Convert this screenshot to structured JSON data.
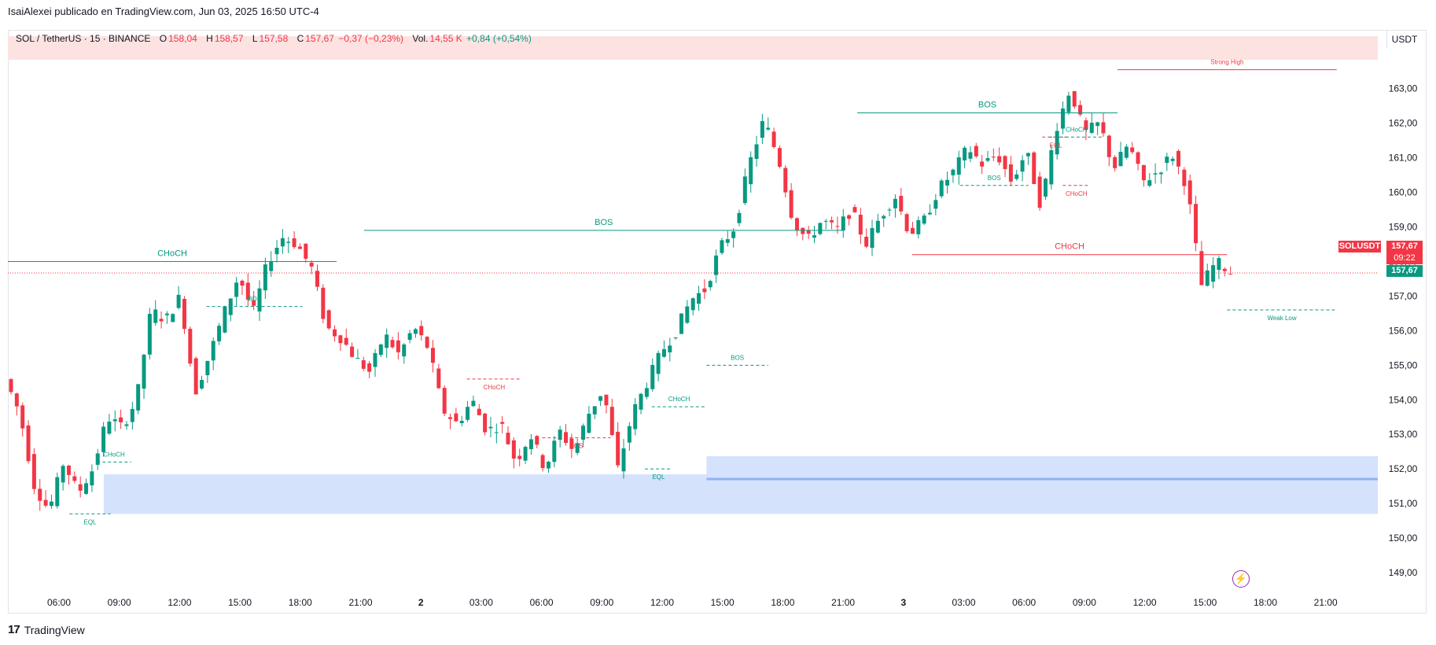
{
  "publisher": "IsaiAlexei publicado en TradingView.com, Jun 03, 2025 16:50 UTC-4",
  "legend": {
    "symbol": "SOL / TetherUS · 15 · BINANCE",
    "o_label": "O",
    "o": "158,04",
    "h_label": "H",
    "h": "158,57",
    "l_label": "L",
    "l": "157,58",
    "c_label": "C",
    "c": "157,67",
    "change": "−0,37 (−0,23%)",
    "vol_label": "Vol.",
    "vol": "14,55 K",
    "vol_change": "+0,84 (+0,54%)"
  },
  "currency_button": "USDT",
  "symbol_tag": "SOLUSDT",
  "price_tag_top": "157,67",
  "countdown": "09:22",
  "price_tag_bottom": "157,67",
  "brand": "TradingView",
  "colors": {
    "up": "#089981",
    "down": "#f23645",
    "zone": "#d4e2fc",
    "strong_high_zone": "#fde2e2"
  },
  "chart_data": {
    "type": "candlestick",
    "ylim": [
      148.5,
      164.2
    ],
    "y_ticks": [
      "149,00",
      "150,00",
      "151,00",
      "152,00",
      "153,00",
      "154,00",
      "155,00",
      "156,00",
      "157,00",
      "158,00",
      "159,00",
      "160,00",
      "161,00",
      "162,00",
      "163,00"
    ],
    "x_ticks": [
      "06:00",
      "09:00",
      "12:00",
      "15:00",
      "18:00",
      "21:00",
      "2",
      "03:00",
      "06:00",
      "09:00",
      "12:00",
      "15:00",
      "18:00",
      "21:00",
      "3",
      "03:00",
      "06:00",
      "09:00",
      "12:00",
      "15:00",
      "18:00",
      "21:00"
    ],
    "key_points": [
      154.6,
      153.6,
      151.5,
      150.8,
      152.2,
      151.3,
      152.0,
      153.5,
      153.2,
      154.0,
      156.6,
      156.3,
      157.0,
      154.2,
      155.3,
      156.5,
      157.6,
      156.5,
      158.0,
      158.7,
      158.5,
      157.8,
      156.1,
      155.8,
      155.2,
      154.8,
      155.9,
      155.3,
      156.1,
      155.5,
      153.7,
      153.3,
      154.0,
      153.1,
      153.3,
      152.2,
      153.0,
      152.0,
      153.1,
      152.5,
      153.6,
      154.3,
      152.0,
      153.6,
      154.5,
      155.4,
      156.0,
      156.9,
      157.2,
      158.4,
      159.0,
      160.8,
      162.1,
      161.0,
      159.2,
      158.6,
      159.2,
      158.9,
      159.5,
      158.5,
      159.3,
      159.9,
      158.8,
      159.2,
      160.1,
      160.6,
      161.3,
      160.8,
      161.1,
      160.3,
      161.2,
      159.6,
      161.8,
      163.0,
      161.7,
      162.0,
      160.7,
      161.4,
      160.3,
      160.6,
      161.1,
      160.2,
      157.3,
      158.0,
      157.7
    ],
    "structure_labels": [
      {
        "text": "CHoCH",
        "color": "green",
        "price": 158.0,
        "x0": 0,
        "x1": 0.24
      },
      {
        "text": "BOS",
        "color": "green",
        "price": 158.9,
        "x0": 0.26,
        "x1": 0.61
      },
      {
        "text": "BOS",
        "color": "green",
        "price": 162.3,
        "x0": 0.62,
        "x1": 0.81
      },
      {
        "text": "Strong High",
        "color": "red",
        "price": 163.55,
        "x0": 0.81,
        "x1": 0.97
      },
      {
        "text": "CHoCH",
        "color": "red",
        "price": 158.2,
        "x0": 0.66,
        "x1": 0.89
      },
      {
        "text": "Weak Low",
        "color": "green",
        "price": 156.6,
        "x0": 0.89,
        "x1": 0.97
      },
      {
        "text": "BOS",
        "color": "green",
        "price": 156.7,
        "x0": 0.145,
        "x1": 0.215
      },
      {
        "text": "CHoCH",
        "color": "red",
        "price": 154.6,
        "x0": 0.335,
        "x1": 0.375
      },
      {
        "text": "BOS",
        "color": "red",
        "price": 152.9,
        "x0": 0.39,
        "x1": 0.44
      },
      {
        "text": "CHoCH",
        "color": "green",
        "price": 153.8,
        "x0": 0.47,
        "x1": 0.51
      },
      {
        "text": "BOS",
        "color": "green",
        "price": 155.0,
        "x0": 0.51,
        "x1": 0.555
      },
      {
        "text": "CHoCH",
        "color": "green",
        "price": 152.2,
        "x0": 0.065,
        "x1": 0.09
      },
      {
        "text": "EQL",
        "color": "green",
        "price": 150.7,
        "x0": 0.045,
        "x1": 0.075
      },
      {
        "text": "EQL",
        "color": "green",
        "price": 152.0,
        "x0": 0.465,
        "x1": 0.485
      },
      {
        "text": "BOS",
        "color": "green",
        "price": 160.2,
        "x0": 0.695,
        "x1": 0.745
      },
      {
        "text": "CHoCH",
        "color": "red",
        "price": 160.2,
        "x0": 0.77,
        "x1": 0.79
      },
      {
        "text": "EQL",
        "color": "red",
        "price": 161.6,
        "x0": 0.755,
        "x1": 0.775
      },
      {
        "text": "CHoCH",
        "color": "green",
        "price": 161.6,
        "x0": 0.76,
        "x1": 0.8
      }
    ],
    "demand_zone": {
      "top": 152.3,
      "bottom": 150.7,
      "mid": 151.8
    },
    "last_price": 157.67
  }
}
